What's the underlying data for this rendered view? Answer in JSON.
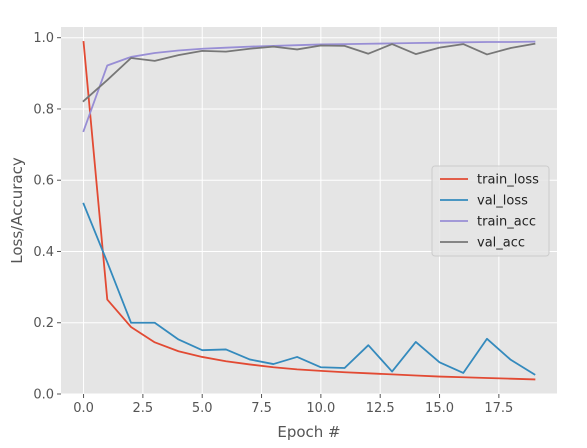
{
  "chart_data": {
    "type": "line",
    "title": "",
    "xlabel": "Epoch #",
    "ylabel": "Loss/Accuracy",
    "xlim": [
      -0.95,
      19.95
    ],
    "ylim": [
      0.0,
      1.03
    ],
    "xticks": [
      0.0,
      2.5,
      5.0,
      7.5,
      10.0,
      12.5,
      15.0,
      17.5
    ],
    "xtick_labels": [
      "0.0",
      "2.5",
      "5.0",
      "7.5",
      "10.0",
      "12.5",
      "15.0",
      "17.5"
    ],
    "yticks": [
      0.0,
      0.2,
      0.4,
      0.6,
      0.8,
      1.0
    ],
    "ytick_labels": [
      "0.0",
      "0.2",
      "0.4",
      "0.6",
      "0.8",
      "1.0"
    ],
    "grid": true,
    "style": "ggplot",
    "legend_position": "center-right",
    "x": [
      0,
      1,
      2,
      3,
      4,
      5,
      6,
      7,
      8,
      9,
      10,
      11,
      12,
      13,
      14,
      15,
      16,
      17,
      18,
      19
    ],
    "series": [
      {
        "name": "train_loss",
        "color": "#E24A33",
        "values": [
          0.988,
          0.265,
          0.188,
          0.145,
          0.12,
          0.104,
          0.092,
          0.083,
          0.075,
          0.069,
          0.065,
          0.061,
          0.058,
          0.055,
          0.052,
          0.049,
          0.047,
          0.045,
          0.043,
          0.041
        ]
      },
      {
        "name": "val_loss",
        "color": "#348ABD",
        "values": [
          0.534,
          0.37,
          0.2,
          0.2,
          0.153,
          0.123,
          0.125,
          0.097,
          0.084,
          0.104,
          0.075,
          0.073,
          0.137,
          0.063,
          0.146,
          0.089,
          0.059,
          0.155,
          0.096,
          0.055
        ]
      },
      {
        "name": "train_acc",
        "color": "#988ED5",
        "values": [
          0.738,
          0.922,
          0.946,
          0.957,
          0.964,
          0.969,
          0.972,
          0.975,
          0.977,
          0.979,
          0.981,
          0.982,
          0.983,
          0.984,
          0.985,
          0.986,
          0.987,
          0.988,
          0.988,
          0.989
        ]
      },
      {
        "name": "val_acc",
        "color": "#777777",
        "values": [
          0.822,
          0.881,
          0.943,
          0.935,
          0.951,
          0.963,
          0.961,
          0.969,
          0.975,
          0.967,
          0.978,
          0.977,
          0.955,
          0.982,
          0.954,
          0.972,
          0.982,
          0.953,
          0.971,
          0.983
        ]
      }
    ]
  }
}
